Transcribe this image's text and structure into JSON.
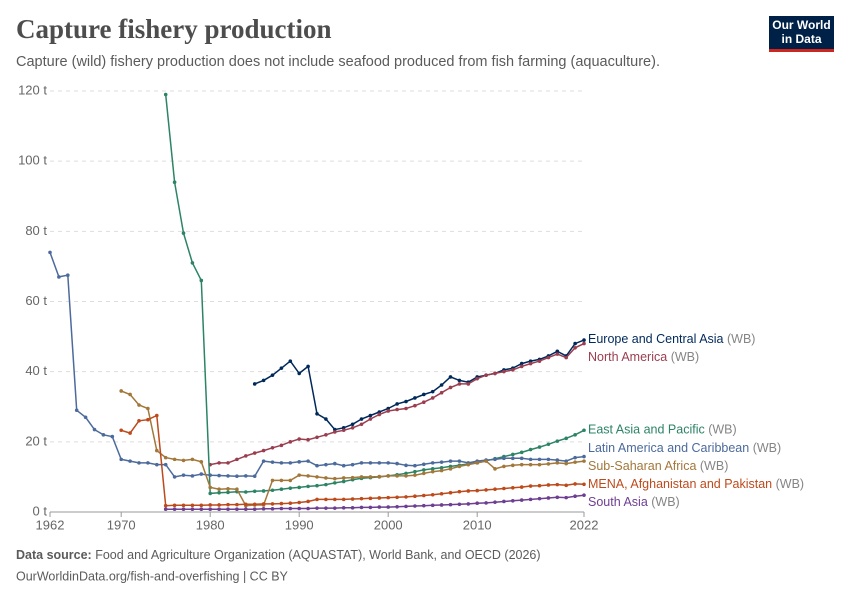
{
  "chart_data": {
    "type": "line",
    "title": "Capture fishery production",
    "subtitle": "Capture (wild) fishery production does not include seafood produced from fish farming (aquaculture).",
    "logo": [
      "Our World",
      "in Data"
    ],
    "source_label": "Data source:",
    "source": "Food and Agriculture Organization (AQUASTAT), World Bank, and OECD (2026)",
    "url_license": "OurWorldinData.org/fish-and-overfishing | CC BY",
    "xlim": [
      1962,
      2022
    ],
    "xticks": [
      1962,
      1970,
      1980,
      1990,
      2000,
      2010,
      2022
    ],
    "ylim": [
      0,
      120
    ],
    "yticks": [
      {
        "value": 0,
        "label": "0 t"
      },
      {
        "value": 20,
        "label": "20 t"
      },
      {
        "value": 40,
        "label": "40 t"
      },
      {
        "value": 60,
        "label": "60 t"
      },
      {
        "value": 80,
        "label": "80 t"
      },
      {
        "value": 100,
        "label": "100 t"
      },
      {
        "value": 120,
        "label": "120 t"
      }
    ],
    "grid": true,
    "x": [
      1962,
      1963,
      1964,
      1965,
      1966,
      1967,
      1968,
      1969,
      1970,
      1971,
      1972,
      1973,
      1974,
      1975,
      1976,
      1977,
      1978,
      1979,
      1980,
      1981,
      1982,
      1983,
      1984,
      1985,
      1986,
      1987,
      1988,
      1989,
      1990,
      1991,
      1992,
      1993,
      1994,
      1995,
      1996,
      1997,
      1998,
      1999,
      2000,
      2001,
      2002,
      2003,
      2004,
      2005,
      2006,
      2007,
      2008,
      2009,
      2010,
      2011,
      2012,
      2013,
      2014,
      2015,
      2016,
      2017,
      2018,
      2019,
      2020,
      2021,
      2022
    ],
    "series": [
      {
        "name": "Europe and Central Asia",
        "suffix": "(WB)",
        "color": "#00295b",
        "values": [
          null,
          null,
          null,
          null,
          null,
          null,
          null,
          null,
          null,
          null,
          null,
          null,
          null,
          null,
          null,
          null,
          null,
          null,
          null,
          null,
          null,
          null,
          null,
          36.5,
          37.5,
          39,
          41,
          43,
          39.5,
          41.5,
          28,
          26.5,
          23.5,
          24,
          25,
          26.5,
          27.5,
          28.5,
          29.5,
          30.8,
          31.5,
          32.5,
          33.5,
          34.3,
          36.2,
          38.5,
          37.5,
          37,
          38.5,
          39,
          39.5,
          40.5,
          41,
          42.3,
          43,
          43.5,
          44.5,
          45.8,
          44.5,
          48,
          49
        ]
      },
      {
        "name": "North America",
        "suffix": "(WB)",
        "color": "#9a3e4f",
        "values": [
          null,
          null,
          null,
          null,
          null,
          null,
          null,
          null,
          null,
          null,
          null,
          null,
          null,
          null,
          null,
          null,
          null,
          null,
          13.5,
          14,
          14,
          15,
          16,
          16.8,
          17.5,
          18.3,
          19,
          20,
          20.8,
          20.6,
          21.3,
          22,
          22.8,
          23.3,
          24,
          25,
          26.5,
          27.8,
          28.8,
          29.2,
          29.5,
          30.3,
          31.3,
          32.5,
          34,
          35.5,
          36.5,
          36.5,
          38,
          39,
          39.5,
          40,
          40.5,
          41.5,
          42.3,
          43,
          44,
          45,
          44,
          46.8,
          48
        ]
      },
      {
        "name": "East Asia and Pacific",
        "suffix": "(WB)",
        "color": "#2c8465",
        "values": [
          null,
          null,
          null,
          null,
          null,
          null,
          null,
          null,
          null,
          null,
          null,
          null,
          null,
          119,
          94,
          79.5,
          71,
          66,
          5.3,
          5.5,
          5.6,
          5.8,
          5.7,
          5.9,
          6,
          6.2,
          6.5,
          6.8,
          7,
          7.3,
          7.5,
          7.8,
          8.3,
          8.7,
          9.2,
          9.6,
          9.8,
          10,
          10.3,
          10.6,
          11,
          11.5,
          12,
          12.3,
          12.6,
          13,
          13.3,
          13.7,
          14,
          14.6,
          15.2,
          15.8,
          16.4,
          17,
          17.8,
          18.5,
          19.3,
          20.2,
          21,
          22,
          23.3
        ]
      },
      {
        "name": "Latin America and Caribbean",
        "suffix": "(WB)",
        "color": "#4c6a9c",
        "values": [
          74,
          67,
          67.5,
          29,
          27,
          23.5,
          22,
          21.5,
          15,
          14.5,
          14,
          14,
          13.5,
          13.5,
          10,
          10.5,
          10.3,
          10.8,
          10.5,
          10.4,
          10.3,
          10.2,
          10.3,
          10.2,
          14.5,
          14.2,
          14,
          14,
          14.3,
          14.5,
          13.2,
          13.5,
          13.8,
          13.2,
          13.5,
          14,
          14,
          14,
          14,
          13.8,
          13.3,
          13.2,
          13.6,
          14,
          14.2,
          14.5,
          14.5,
          14,
          14.5,
          14.8,
          15,
          15.3,
          15.3,
          15.3,
          15,
          15,
          15,
          14.8,
          14.5,
          15.5,
          15.8
        ]
      },
      {
        "name": "Sub-Saharan Africa",
        "suffix": "(WB)",
        "color": "#a2773a",
        "values": [
          null,
          null,
          null,
          null,
          null,
          null,
          null,
          null,
          34.5,
          33.5,
          30.5,
          29.5,
          17.5,
          15.5,
          15,
          14.7,
          15,
          14.3,
          7,
          6.5,
          6.6,
          6.5,
          1.8,
          2,
          2,
          9,
          9,
          9,
          10.5,
          10.3,
          10,
          9.7,
          9.5,
          9.7,
          9.8,
          10,
          10,
          10.1,
          10.3,
          10.3,
          10.3,
          10.5,
          11,
          11.5,
          11.8,
          12.3,
          13,
          13.5,
          14,
          14.5,
          12.3,
          13,
          13.3,
          13.5,
          13.5,
          13.5,
          13.7,
          14,
          13.8,
          14.2,
          14.5
        ]
      },
      {
        "name": "MENA, Afghanistan and Pakistan",
        "suffix": "(WB)",
        "color": "#bd4a1b",
        "values": [
          null,
          null,
          null,
          null,
          null,
          null,
          null,
          null,
          23.3,
          22.5,
          26,
          26.3,
          27.5,
          1.8,
          1.9,
          1.9,
          1.9,
          1.9,
          2,
          2,
          2.1,
          2.1,
          2.2,
          2.2,
          2.3,
          2.3,
          2.4,
          2.5,
          2.7,
          3,
          3.6,
          3.6,
          3.6,
          3.6,
          3.7,
          3.8,
          3.9,
          4,
          4.1,
          4.2,
          4.3,
          4.5,
          4.7,
          4.9,
          5.2,
          5.5,
          5.8,
          6,
          6.1,
          6.3,
          6.5,
          6.7,
          6.9,
          7.1,
          7.4,
          7.5,
          7.7,
          7.8,
          7.6,
          8,
          7.9
        ]
      },
      {
        "name": "South Asia",
        "suffix": "(WB)",
        "color": "#6d3e91",
        "values": [
          null,
          null,
          null,
          null,
          null,
          null,
          null,
          null,
          null,
          null,
          null,
          null,
          null,
          0.8,
          0.8,
          0.8,
          0.8,
          0.8,
          0.8,
          0.8,
          0.8,
          0.8,
          0.8,
          0.8,
          0.9,
          0.9,
          1,
          1,
          1,
          1,
          1.1,
          1.1,
          1.1,
          1.2,
          1.2,
          1.3,
          1.3,
          1.4,
          1.4,
          1.5,
          1.6,
          1.7,
          1.8,
          1.9,
          2,
          2.1,
          2.2,
          2.3,
          2.5,
          2.6,
          2.8,
          3,
          3.2,
          3.4,
          3.6,
          3.8,
          4,
          4.2,
          4.1,
          4.5,
          4.8
        ]
      }
    ]
  }
}
